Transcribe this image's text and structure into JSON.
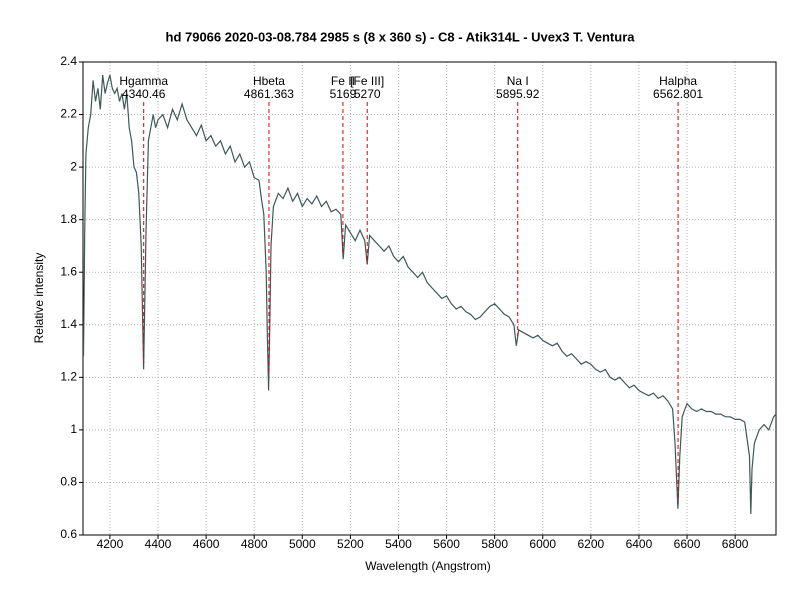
{
  "chart_data": {
    "type": "line",
    "title": "hd 79066   2020-03-08.784   2985 s (8 x 360 s) - C8 - Atik314L - Uvex3 T. Ventura",
    "xlabel": "Wavelength (Angstrom)",
    "ylabel": "Relative intensity",
    "xlim": [
      4088,
      6970
    ],
    "ylim": [
      0.6,
      2.4
    ],
    "xticks": [
      4200,
      4400,
      4600,
      4800,
      5000,
      5200,
      5400,
      5600,
      5800,
      6000,
      6200,
      6400,
      6600,
      6800
    ],
    "yticks": [
      0.6,
      0.8,
      1,
      1.2,
      1.4,
      1.6,
      1.8,
      2,
      2.2,
      2.4
    ],
    "grid": true,
    "annotation_color": "#e00000",
    "annotations": [
      {
        "x": 4340.46,
        "label": "Hgamma"
      },
      {
        "x": 4861.363,
        "label": "Hbeta"
      },
      {
        "x": 5169,
        "label": "Fe II"
      },
      {
        "x": 5270,
        "label": "[Fe III]"
      },
      {
        "x": 5895.92,
        "label": "Na I"
      },
      {
        "x": 6562.801,
        "label": "Halpha"
      }
    ],
    "series": [
      {
        "color": "#3d5858",
        "x": [
          4090,
          4095,
          4100,
          4110,
          4120,
          4130,
          4140,
          4150,
          4160,
          4170,
          4180,
          4190,
          4200,
          4210,
          4220,
          4230,
          4240,
          4250,
          4260,
          4270,
          4280,
          4290,
          4300,
          4310,
          4320,
          4330,
          4340,
          4350,
          4360,
          4370,
          4380,
          4390,
          4400,
          4420,
          4440,
          4460,
          4480,
          4500,
          4520,
          4540,
          4560,
          4580,
          4600,
          4620,
          4640,
          4660,
          4680,
          4700,
          4720,
          4740,
          4760,
          4780,
          4800,
          4820,
          4830,
          4840,
          4850,
          4855,
          4860,
          4865,
          4870,
          4880,
          4900,
          4920,
          4940,
          4960,
          4980,
          5000,
          5020,
          5040,
          5060,
          5080,
          5100,
          5120,
          5140,
          5160,
          5170,
          5180,
          5200,
          5220,
          5240,
          5260,
          5270,
          5280,
          5300,
          5320,
          5340,
          5360,
          5380,
          5400,
          5420,
          5440,
          5460,
          5480,
          5500,
          5520,
          5540,
          5560,
          5580,
          5600,
          5620,
          5640,
          5660,
          5680,
          5700,
          5720,
          5740,
          5760,
          5780,
          5800,
          5820,
          5840,
          5860,
          5880,
          5890,
          5900,
          5920,
          5940,
          5960,
          5980,
          6000,
          6020,
          6040,
          6060,
          6080,
          6100,
          6120,
          6140,
          6160,
          6180,
          6200,
          6220,
          6240,
          6260,
          6280,
          6300,
          6320,
          6340,
          6360,
          6380,
          6400,
          6420,
          6440,
          6460,
          6480,
          6500,
          6520,
          6540,
          6550,
          6562,
          6570,
          6580,
          6600,
          6620,
          6640,
          6660,
          6680,
          6700,
          6720,
          6740,
          6760,
          6780,
          6800,
          6820,
          6840,
          6860,
          6865,
          6870,
          6880,
          6900,
          6920,
          6940,
          6960,
          6970
        ],
        "values": [
          1.28,
          1.75,
          2.05,
          2.15,
          2.2,
          2.33,
          2.25,
          2.3,
          2.22,
          2.35,
          2.28,
          2.32,
          2.35,
          2.3,
          2.28,
          2.3,
          2.25,
          2.28,
          2.22,
          2.28,
          2.15,
          2.1,
          2.0,
          1.98,
          1.9,
          1.7,
          1.23,
          1.75,
          2.1,
          2.15,
          2.2,
          2.15,
          2.18,
          2.2,
          2.15,
          2.22,
          2.18,
          2.24,
          2.18,
          2.15,
          2.12,
          2.16,
          2.1,
          2.12,
          2.08,
          2.1,
          2.05,
          2.08,
          2.02,
          2.05,
          2.0,
          2.02,
          1.96,
          1.95,
          1.88,
          1.82,
          1.6,
          1.35,
          1.15,
          1.4,
          1.7,
          1.85,
          1.9,
          1.88,
          1.92,
          1.87,
          1.9,
          1.85,
          1.88,
          1.86,
          1.89,
          1.85,
          1.87,
          1.83,
          1.84,
          1.82,
          1.65,
          1.78,
          1.75,
          1.72,
          1.76,
          1.72,
          1.63,
          1.74,
          1.72,
          1.7,
          1.68,
          1.7,
          1.66,
          1.64,
          1.66,
          1.62,
          1.6,
          1.58,
          1.6,
          1.56,
          1.54,
          1.52,
          1.5,
          1.51,
          1.48,
          1.46,
          1.47,
          1.45,
          1.44,
          1.42,
          1.43,
          1.45,
          1.47,
          1.48,
          1.46,
          1.44,
          1.43,
          1.4,
          1.32,
          1.38,
          1.37,
          1.36,
          1.35,
          1.36,
          1.34,
          1.33,
          1.32,
          1.33,
          1.3,
          1.28,
          1.29,
          1.27,
          1.25,
          1.26,
          1.25,
          1.23,
          1.22,
          1.23,
          1.2,
          1.19,
          1.2,
          1.18,
          1.16,
          1.17,
          1.15,
          1.14,
          1.13,
          1.14,
          1.12,
          1.13,
          1.11,
          1.08,
          0.95,
          0.7,
          0.9,
          1.05,
          1.1,
          1.08,
          1.07,
          1.08,
          1.07,
          1.07,
          1.06,
          1.06,
          1.05,
          1.05,
          1.04,
          1.04,
          1.03,
          0.9,
          0.68,
          0.85,
          0.95,
          1.0,
          1.02,
          1.0,
          1.05,
          1.06
        ]
      }
    ]
  }
}
